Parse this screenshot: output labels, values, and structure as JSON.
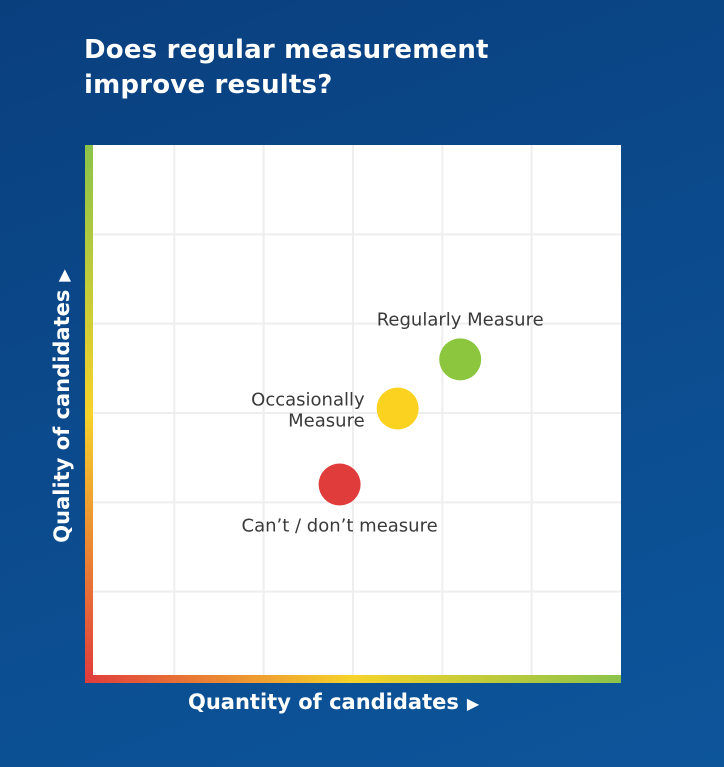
{
  "title": "Does regular measurement improve results?",
  "colors": {
    "background": "#0b4a8c",
    "plot_bg": "#ffffff",
    "grid": "#eeeeee",
    "axis_gradient": [
      "#e03c3c",
      "#f6d32a",
      "#8bc34a"
    ]
  },
  "chart_data": {
    "type": "scatter",
    "title": "Does regular measurement improve results?",
    "xlabel": "Quantity of candidates",
    "ylabel": "Quality of candidates",
    "xlim": [
      0,
      6
    ],
    "ylim": [
      0,
      6
    ],
    "grid": true,
    "points": [
      {
        "label": "Regularly Measure",
        "x": 4.2,
        "y": 3.6,
        "color": "#8cc63f"
      },
      {
        "label": "Occasionally Measure",
        "x": 3.5,
        "y": 3.05,
        "color": "#fbd220"
      },
      {
        "label": "Can’t / don’t measure",
        "x": 2.85,
        "y": 2.2,
        "color": "#e03c3c"
      }
    ]
  }
}
